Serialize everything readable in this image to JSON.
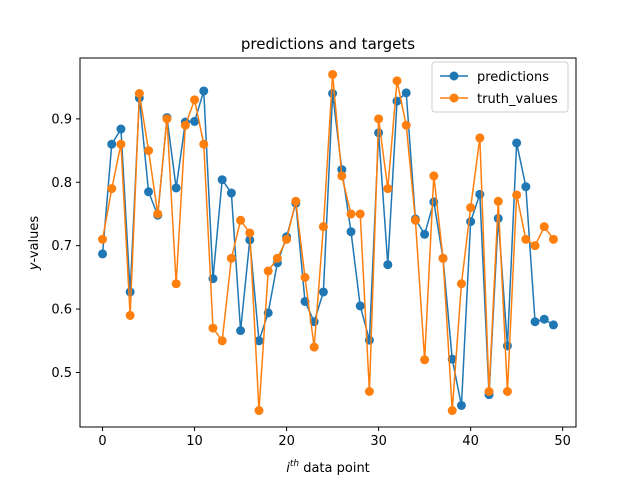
{
  "chart_data": {
    "type": "line",
    "title": "predictions and targets",
    "xlabel_base": "i",
    "xlabel_sup": "th",
    "xlabel_rest": " data point",
    "ylabel_italic": "y",
    "ylabel_rest": "-values",
    "xlim": [
      -2.45,
      51.45
    ],
    "ylim": [
      0.414,
      0.996
    ],
    "xticks": [
      0,
      10,
      20,
      30,
      40,
      50
    ],
    "yticks": [
      0.5,
      0.6,
      0.7,
      0.8,
      0.9
    ],
    "ytick_labels": [
      "0.5",
      "0.6",
      "0.7",
      "0.8",
      "0.9"
    ],
    "legend_position": "upper right",
    "grid": false,
    "x": [
      0,
      1,
      2,
      3,
      4,
      5,
      6,
      7,
      8,
      9,
      10,
      11,
      12,
      13,
      14,
      15,
      16,
      17,
      18,
      19,
      20,
      21,
      22,
      23,
      24,
      25,
      26,
      27,
      28,
      29,
      30,
      31,
      32,
      33,
      34,
      35,
      36,
      37,
      38,
      39,
      40,
      41,
      42,
      43,
      44,
      45,
      46,
      47,
      48,
      49
    ],
    "series": [
      {
        "name": "predictions",
        "color": "#1f77b4",
        "values": [
          0.687,
          0.86,
          0.884,
          0.627,
          0.933,
          0.785,
          0.748,
          0.902,
          0.791,
          0.895,
          0.896,
          0.944,
          0.648,
          0.804,
          0.783,
          0.566,
          0.709,
          0.55,
          0.594,
          0.673,
          0.714,
          0.767,
          0.612,
          0.58,
          0.627,
          0.94,
          0.82,
          0.722,
          0.605,
          0.551,
          0.878,
          0.67,
          0.928,
          0.941,
          0.742,
          0.718,
          0.769,
          0.68,
          0.521,
          0.448,
          0.738,
          0.781,
          0.465,
          0.743,
          0.542,
          0.862,
          0.793,
          0.58,
          0.584,
          0.575
        ]
      },
      {
        "name": "truth_values",
        "color": "#ff7f0e",
        "values": [
          0.71,
          0.79,
          0.86,
          0.59,
          0.94,
          0.85,
          0.75,
          0.9,
          0.64,
          0.89,
          0.93,
          0.86,
          0.57,
          0.55,
          0.68,
          0.74,
          0.72,
          0.44,
          0.66,
          0.68,
          0.71,
          0.77,
          0.65,
          0.54,
          0.73,
          0.97,
          0.81,
          0.75,
          0.75,
          0.47,
          0.9,
          0.79,
          0.96,
          0.89,
          0.74,
          0.52,
          0.81,
          0.68,
          0.44,
          0.64,
          0.76,
          0.87,
          0.47,
          0.77,
          0.47,
          0.78,
          0.71,
          0.7,
          0.73,
          0.71
        ]
      }
    ]
  }
}
